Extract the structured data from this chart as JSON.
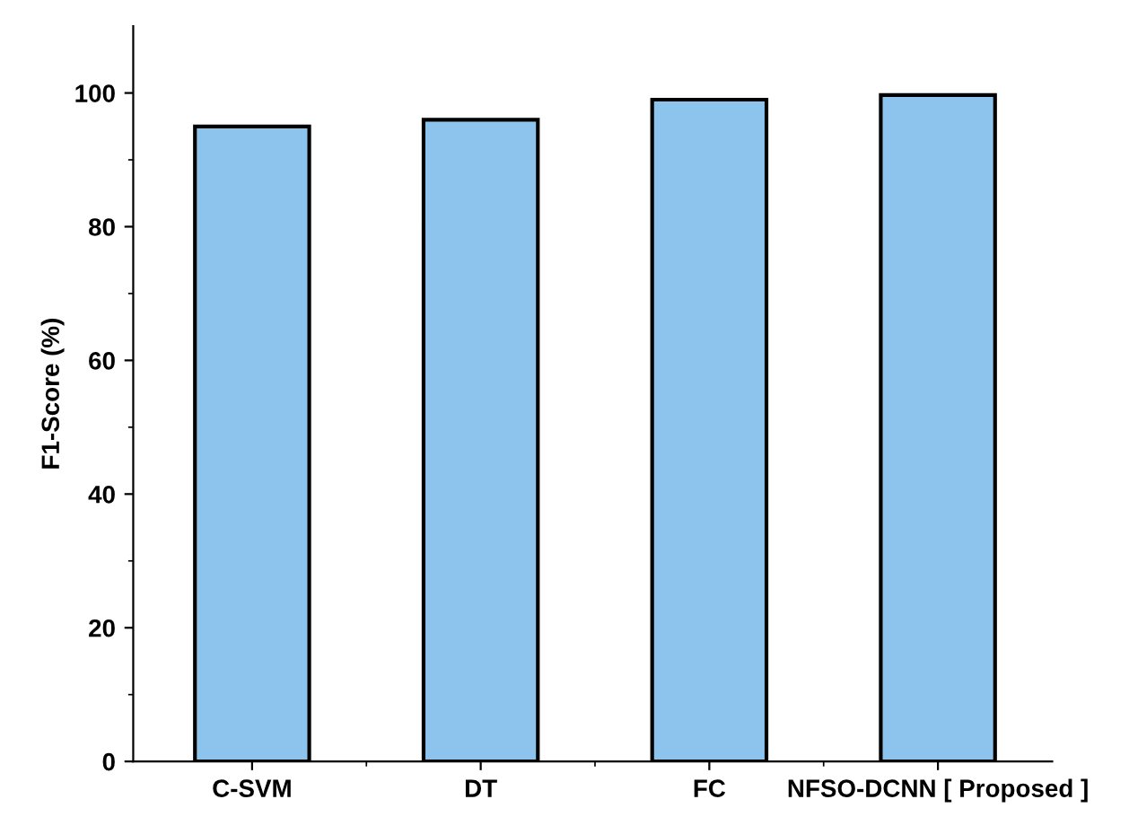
{
  "chart_data": {
    "type": "bar",
    "ylabel": "F1-Score (%)",
    "categories": [
      "C-SVM",
      "DT",
      "FC",
      "NFSO-DCNN [ Proposed ]"
    ],
    "values": [
      95,
      96,
      99,
      99.7
    ],
    "color": "#8cc4ee",
    "ylim": [
      0,
      110
    ],
    "yticks": [
      0,
      20,
      40,
      60,
      80,
      100
    ],
    "grid": false,
    "legend": false
  }
}
